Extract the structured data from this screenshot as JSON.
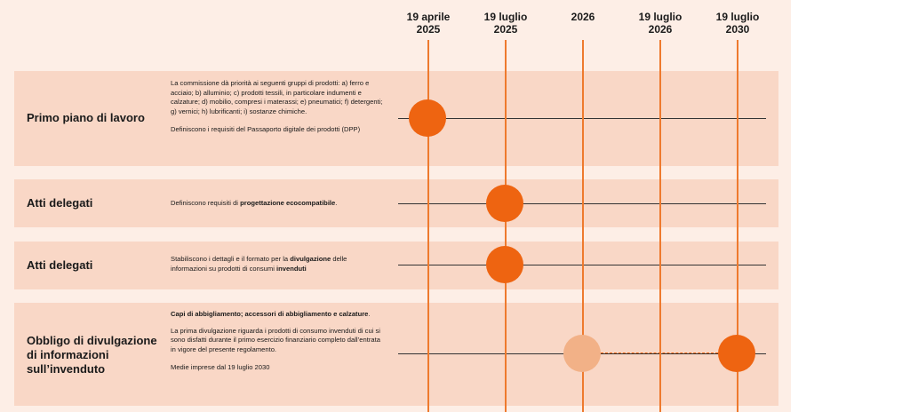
{
  "dates": [
    {
      "line1": "19 aprile",
      "line2": "2025"
    },
    {
      "line1": "19 luglio",
      "line2": "2025"
    },
    {
      "line1": "2026",
      "line2": ""
    },
    {
      "line1": "19 luglio",
      "line2": "2026"
    },
    {
      "line1": "19 luglio",
      "line2": "2030"
    }
  ],
  "rows": [
    {
      "title": "Primo piano di lavoro",
      "desc_p1": "La commissione dà priorità ai seguenti gruppi di prodotti: a) ferro e acciaio; b) alluminio; c) prodotti tessili, in particolare indumenti e calzature; d) mobilio, compresi i materassi; e) pneumatici; f) detergenti; g) vernici; h) lubrificanti; i) sostanze chimiche.",
      "desc_p2": "Definiscono i requisiti del Passaporto digitale dei prodotti (DPP)"
    },
    {
      "title": "Atti delegati",
      "desc_pre": "Definiscono requisiti di ",
      "desc_bold": "progettazione ecocompatibile",
      "desc_post": "."
    },
    {
      "title": "Atti delegati",
      "desc_pre": "Stabiliscono i dettagli e il formato per la ",
      "desc_bold": "divulgazione",
      "desc_mid": " delle informazioni su prodotti di consumi ",
      "desc_bold2": "invenduti"
    },
    {
      "title": "Obbligo di divulgazione di informazioni sull’invenduto",
      "desc_bold": "Capi di abbigliamento; accessori di abbigliamento e calzature",
      "desc_post": ".",
      "desc_p2": "La prima divulgazione riguarda i prodotti di consumo invenduti di cui si sono disfatti durante il primo esercizio finanziario completo dall’entrata in vigore del presente regolamento.",
      "desc_p3": "Medie imprese dal 19 luglio 2030"
    }
  ],
  "colors": {
    "accent": "#ee6411",
    "accent_light": "#f2b187",
    "row_bg": "#f9d7c6",
    "page_bg": "#fdeee6"
  }
}
